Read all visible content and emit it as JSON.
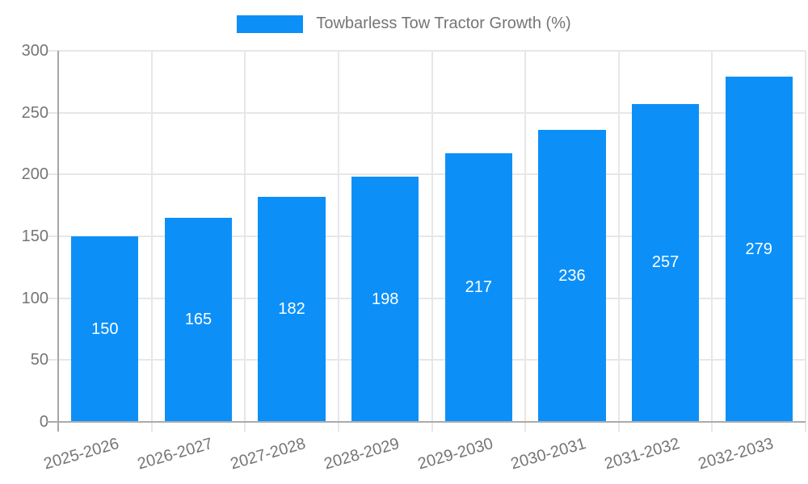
{
  "legend": {
    "label": "Towbarless Tow Tractor Growth (%)"
  },
  "chart_data": {
    "type": "bar",
    "title": "Towbarless Tow Tractor Growth (%)",
    "categories": [
      "2025-2026",
      "2026-2027",
      "2027-2028",
      "2028-2029",
      "2029-2030",
      "2030-2031",
      "2031-2032",
      "2032-2033"
    ],
    "values": [
      150,
      165,
      182,
      198,
      217,
      236,
      257,
      279
    ],
    "xlabel": "",
    "ylabel": "",
    "ylim": [
      0,
      300
    ],
    "yticks": [
      0,
      50,
      100,
      150,
      200,
      250,
      300
    ],
    "grid": true,
    "legend_position": "top-center",
    "bar_color": "#0c90f8",
    "value_label_color": "#ffffff",
    "tick_label_color": "#757575",
    "grid_color": "#e7e7e7",
    "axis_color": "#ababab"
  }
}
